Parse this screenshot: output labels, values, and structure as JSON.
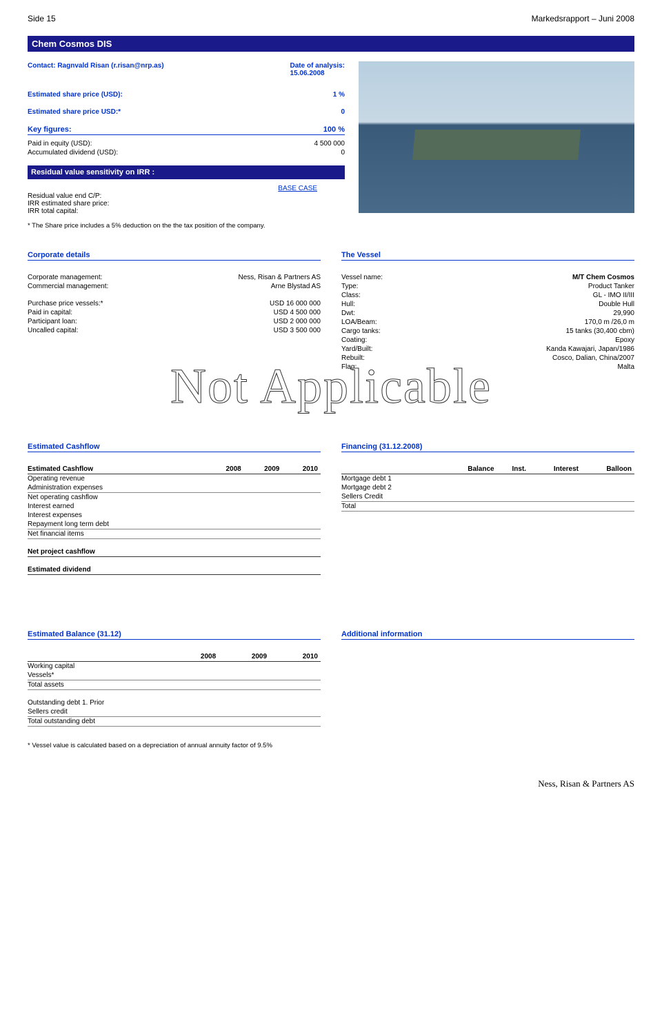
{
  "header": {
    "page_left": "Side 15",
    "page_right": "Markedsrapport – Juni 2008"
  },
  "title": "Chem Cosmos DIS",
  "contact": {
    "line": "Contact: Ragnvald Risan (r.risan@nrp.as)",
    "date_label": "Date of analysis:",
    "date_value": "15.06.2008"
  },
  "share_price": {
    "est_label": "Estimated share price (USD):",
    "est_value": "1 %",
    "est_usd_label": "Estimated share price USD:*",
    "est_usd_value": "0"
  },
  "key_figures": {
    "header": "Key figures:",
    "header_value": "100 %",
    "rows": [
      {
        "k": "Paid in equity (USD):",
        "v": "4 500 000"
      },
      {
        "k": "Accumulated dividend (USD):",
        "v": "0"
      }
    ]
  },
  "residual": {
    "header": "Residual value sensitivity on IRR :",
    "base_case": "BASE CASE",
    "rows": [
      "Residual value end C/P:",
      "IRR estimated share price:",
      "IRR total capital:"
    ]
  },
  "note1": "* The Share price includes a 5% deduction on the the tax position of the company.",
  "corporate": {
    "header": "Corporate details",
    "rows": [
      {
        "k": "Corporate management:",
        "v": "Ness, Risan & Partners AS"
      },
      {
        "k": "Commercial management:",
        "v": "Arne Blystad AS"
      }
    ],
    "rows2": [
      {
        "k": "Purchase price vessels:*",
        "v": "USD 16 000 000"
      },
      {
        "k": "Paid in capital:",
        "v": "USD 4 500 000"
      },
      {
        "k": "Participant loan:",
        "v": "USD 2 000 000"
      },
      {
        "k": "Uncalled capital:",
        "v": "USD 3 500 000"
      }
    ]
  },
  "vessel": {
    "header": "The Vessel",
    "rows": [
      {
        "k": "Vessel name:",
        "v": "M/T Chem Cosmos"
      },
      {
        "k": "Type:",
        "v": "Product Tanker"
      },
      {
        "k": "Class:",
        "v": "GL - IMO II/III"
      },
      {
        "k": "Hull:",
        "v": "Double Hull"
      },
      {
        "k": "Dwt:",
        "v": "29,990"
      },
      {
        "k": "LOA/Beam:",
        "v": "170,0 m /26,0 m"
      },
      {
        "k": "Cargo tanks:",
        "v": "15 tanks (30,400 cbm)"
      },
      {
        "k": "Coating:",
        "v": "Epoxy"
      },
      {
        "k": "Yard/Built:",
        "v": "Kanda Kawajari, Japan/1986"
      },
      {
        "k": "Rebuilt:",
        "v": "Cosco, Dalian, China/2007"
      },
      {
        "k": "Flag:",
        "v": "Malta"
      }
    ]
  },
  "watermark": "Not Applicable",
  "cashflow": {
    "header": "Estimated Cashflow",
    "col_header": "Estimated Cashflow",
    "years": [
      "2008",
      "2009",
      "2010"
    ],
    "rows": [
      "Operating revenue",
      "Administration expenses",
      "Net operating cashflow",
      "Interest earned",
      "Interest expenses",
      "Repayment long term debt",
      "Net financial items"
    ],
    "net_project": "Net project cashflow",
    "est_div": "Estimated dividend"
  },
  "financing": {
    "header": "Financing (31.12.2008)",
    "cols": [
      "Balance",
      "Inst.",
      "Interest",
      "Balloon"
    ],
    "rows": [
      "Mortgage debt 1",
      "Mortgage debt 2",
      "Sellers Credit",
      "Total"
    ]
  },
  "balance": {
    "header": "Estimated Balance (31.12)",
    "years": [
      "2008",
      "2009",
      "2010"
    ],
    "rows1": [
      "Working capital",
      "Vessels*",
      "Total assets"
    ],
    "rows2": [
      "Outstanding debt 1. Prior",
      "Sellers credit",
      "Total outstanding debt"
    ]
  },
  "additional": {
    "header": "Additional information"
  },
  "note2": "* Vessel value is calculated based on a depreciation of annual annuity factor of 9.5%",
  "footer": "Ness, Risan & Partners AS"
}
